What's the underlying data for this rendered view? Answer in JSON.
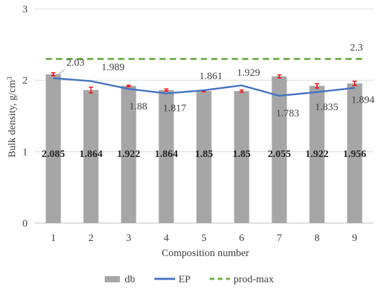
{
  "chart_data": {
    "type": "bar",
    "categories": [
      "1",
      "2",
      "3",
      "4",
      "5",
      "6",
      "7",
      "8",
      "9"
    ],
    "series": [
      {
        "name": "db",
        "type": "bar",
        "values": [
          2.085,
          1.864,
          1.922,
          1.864,
          1.85,
          1.85,
          2.055,
          1.922,
          1.956
        ],
        "labels": [
          "2.085",
          "1.864",
          "1.922",
          "1.864",
          "1.85",
          "1.85",
          "2.055",
          "1.922",
          "1.956"
        ],
        "error": [
          0.02,
          0.04,
          0.01,
          0.015,
          0.01,
          0.015,
          0.02,
          0.03,
          0.03
        ],
        "color": "#a6a6a6"
      },
      {
        "name": "EP",
        "type": "line",
        "values": [
          2.03,
          1.989,
          1.88,
          1.817,
          1.861,
          1.929,
          1.783,
          1.835,
          1.894
        ],
        "labels": [
          "2.03",
          "1.989",
          "1.88",
          "1.817",
          "1.861",
          "1.929",
          "1.783",
          "1.835",
          "1.894"
        ],
        "color": "#4472c4"
      },
      {
        "name": "prod-max",
        "type": "dashed-line",
        "values": [
          2.3,
          2.3,
          2.3,
          2.3,
          2.3,
          2.3,
          2.3,
          2.3,
          2.3
        ],
        "label": "2.3",
        "color": "#70ad47"
      }
    ],
    "xlabel": "Composition number",
    "ylabel_main": "Bulk density, g/cm",
    "ylabel_sup": "3",
    "ylim": [
      0,
      3
    ],
    "yticks": [
      "0",
      "1",
      "2",
      "3"
    ],
    "grid": true,
    "legend": "bottom",
    "error_bar_color": "#ff0000"
  }
}
